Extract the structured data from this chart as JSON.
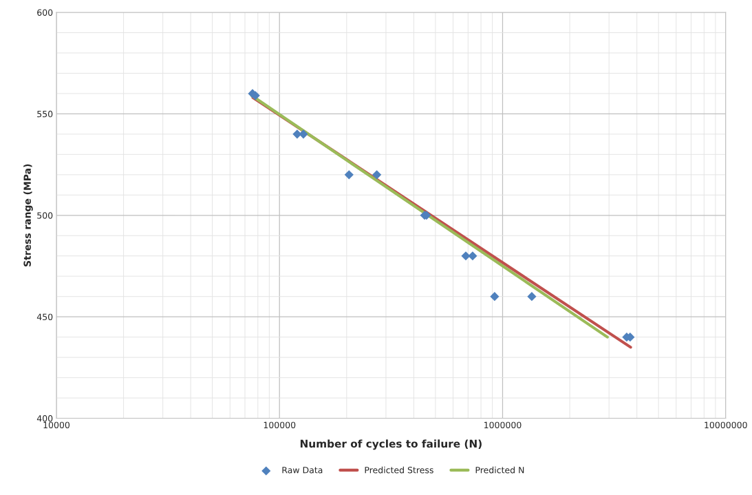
{
  "chart_data": {
    "type": "scatter",
    "xlabel": "Number of cycles to failure (N)",
    "ylabel": "Stress range (MPa)",
    "log": "x",
    "xlim": [
      10000,
      10000000
    ],
    "xticks": [
      10000,
      100000,
      1000000,
      10000000
    ],
    "ylim": [
      400,
      600
    ],
    "yticks": [
      400,
      450,
      500,
      550,
      600
    ],
    "grid": true,
    "legend": "bottom",
    "series": [
      {
        "name": "Raw Data",
        "marker": "diamond",
        "color": "#4f81bd",
        "x": [
          75700,
          78000,
          120000,
          128000,
          205000,
          273000,
          447000,
          456000,
          684000,
          734000,
          921000,
          1352000,
          3600000,
          3730000
        ],
        "values": [
          560,
          559,
          540,
          540,
          520,
          520,
          500,
          500,
          480,
          480,
          460,
          460,
          440,
          440
        ]
      },
      {
        "name": "Predicted Stress",
        "type": "line",
        "color": "#c0504d",
        "x": [
          76000,
          3750000
        ],
        "values": [
          558,
          435
        ]
      },
      {
        "name": "Predicted N",
        "type": "line",
        "color": "#9bbb59",
        "x": [
          75000,
          2950000
        ],
        "values": [
          559,
          440
        ]
      }
    ]
  }
}
